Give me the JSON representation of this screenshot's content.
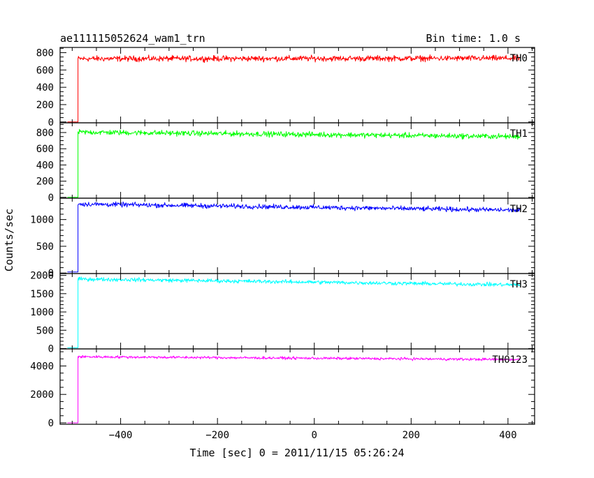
{
  "chart_data": {
    "type": "line",
    "title": "ae111115052624_wam1_trn",
    "subtitle": "Bin time: 1.0 s",
    "xlabel": "Time [sec] 0 = 2011/11/15 05:26:24",
    "ylabel": "Counts/sec",
    "xlim": [
      -525,
      455
    ],
    "x_ticks": [
      -400,
      -200,
      0,
      200,
      400
    ],
    "x_tick_labels": [
      "−400",
      "−200",
      "0",
      "200",
      "400"
    ],
    "x_minor_step": 50,
    "grid": false,
    "bin_time": 1.0,
    "data_x_range": [
      -510,
      425
    ],
    "onset_time": -488,
    "panels": [
      {
        "name": "TH0",
        "color": "#ff0000",
        "ylim": [
          -10,
          860
        ],
        "y_ticks": [
          0,
          200,
          400,
          600,
          800
        ],
        "y_tick_labels": [
          "0",
          "200",
          "400",
          "600",
          "800"
        ],
        "y_minor_step": 50,
        "baseline": 0,
        "level_start": 730,
        "level_end": 735,
        "noise": 28
      },
      {
        "name": "TH1",
        "color": "#00ff00",
        "ylim": [
          -10,
          920
        ],
        "y_ticks": [
          0,
          200,
          400,
          600,
          800
        ],
        "y_tick_labels": [
          "0",
          "200",
          "400",
          "600",
          "800"
        ],
        "y_minor_step": 50,
        "baseline": 0,
        "level_start": 805,
        "level_end": 750,
        "noise": 28
      },
      {
        "name": "TH2",
        "color": "#0000ff",
        "ylim": [
          -10,
          1400
        ],
        "y_ticks": [
          0,
          500,
          1000
        ],
        "y_tick_labels": [
          "0",
          "500",
          "1000"
        ],
        "y_minor_step": 100,
        "baseline": 20,
        "level_start": 1290,
        "level_end": 1175,
        "noise": 38
      },
      {
        "name": "TH3",
        "color": "#00ffff",
        "ylim": [
          -10,
          2050
        ],
        "y_ticks": [
          0,
          500,
          1000,
          1500,
          2000
        ],
        "y_tick_labels": [
          "0",
          "500",
          "1000",
          "1500",
          "2000"
        ],
        "y_minor_step": 100,
        "baseline": 20,
        "level_start": 1900,
        "level_end": 1740,
        "noise": 45
      },
      {
        "name": "TH0123",
        "color": "#ff00ff",
        "ylim": [
          -100,
          5200
        ],
        "y_ticks": [
          0,
          2000,
          4000
        ],
        "y_tick_labels": [
          "0",
          "2000",
          "4000"
        ],
        "y_minor_step": 500,
        "baseline": 0,
        "level_start": 4650,
        "level_end": 4450,
        "noise": 80
      }
    ]
  }
}
